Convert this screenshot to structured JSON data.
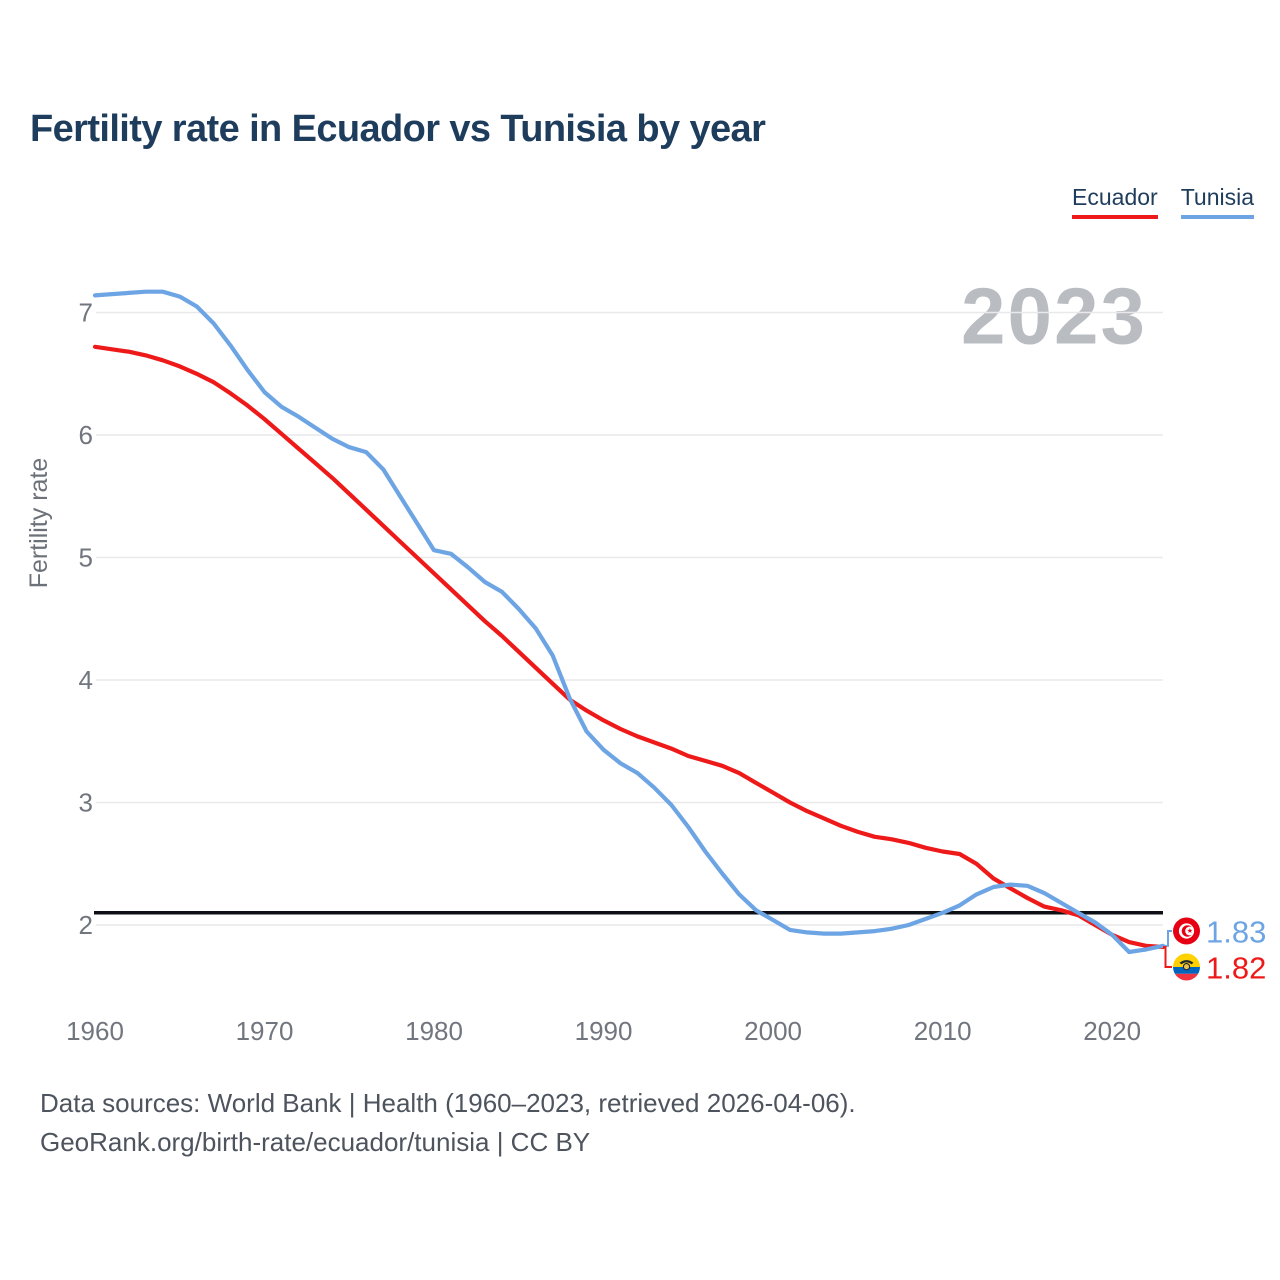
{
  "header": {
    "title": "Fertility rate in Ecuador vs Tunisia by year"
  },
  "legend": {
    "items": [
      {
        "label": "Ecuador",
        "color": "#ee1a1a"
      },
      {
        "label": "Tunisia",
        "color": "#6da5e4"
      }
    ]
  },
  "footer": {
    "line1": "Data sources: World Bank | Health (1960–2023, retrieved 2026-04-06).",
    "line2": "GeoRank.org/birth-rate/ecuador/tunisia | CC BY"
  },
  "chart_data": {
    "type": "line",
    "title": "Fertility rate in Ecuador vs Tunisia by year",
    "xlabel": "",
    "ylabel": "Fertility rate",
    "watermark": "2023",
    "grid": true,
    "legend_position": "top-right",
    "x_ticks": [
      1960,
      1970,
      1980,
      1990,
      2000,
      2010,
      2020
    ],
    "y_ticks": [
      2,
      3,
      4,
      5,
      6,
      7
    ],
    "ylim": [
      1.55,
      7.3
    ],
    "reference_line": {
      "value": 2.1,
      "color": "#0d1015"
    },
    "x": [
      1960,
      1961,
      1962,
      1963,
      1964,
      1965,
      1966,
      1967,
      1968,
      1969,
      1970,
      1971,
      1972,
      1973,
      1974,
      1975,
      1976,
      1977,
      1978,
      1979,
      1980,
      1981,
      1982,
      1983,
      1984,
      1985,
      1986,
      1987,
      1988,
      1989,
      1990,
      1991,
      1992,
      1993,
      1994,
      1995,
      1996,
      1997,
      1998,
      1999,
      2000,
      2001,
      2002,
      2003,
      2004,
      2005,
      2006,
      2007,
      2008,
      2009,
      2010,
      2011,
      2012,
      2013,
      2014,
      2015,
      2016,
      2017,
      2018,
      2019,
      2020,
      2021,
      2022,
      2023
    ],
    "series": [
      {
        "name": "Ecuador",
        "color": "#ee1a1a",
        "values": [
          6.72,
          6.7,
          6.68,
          6.65,
          6.61,
          6.56,
          6.5,
          6.43,
          6.34,
          6.24,
          6.13,
          6.01,
          5.89,
          5.77,
          5.65,
          5.52,
          5.39,
          5.26,
          5.13,
          5.0,
          4.87,
          4.74,
          4.61,
          4.48,
          4.36,
          4.23,
          4.1,
          3.97,
          3.84,
          3.75,
          3.67,
          3.6,
          3.54,
          3.49,
          3.44,
          3.38,
          3.34,
          3.3,
          3.24,
          3.16,
          3.08,
          3.0,
          2.93,
          2.87,
          2.81,
          2.76,
          2.72,
          2.7,
          2.67,
          2.63,
          2.6,
          2.58,
          2.5,
          2.38,
          2.3,
          2.22,
          2.15,
          2.12,
          2.08,
          2.0,
          1.92,
          1.86,
          1.83,
          1.82
        ]
      },
      {
        "name": "Tunisia",
        "color": "#6da5e4",
        "values": [
          7.14,
          7.15,
          7.16,
          7.17,
          7.17,
          7.13,
          7.05,
          6.91,
          6.73,
          6.53,
          6.35,
          6.23,
          6.15,
          6.06,
          5.97,
          5.9,
          5.86,
          5.72,
          5.5,
          5.28,
          5.06,
          5.03,
          4.92,
          4.8,
          4.72,
          4.58,
          4.42,
          4.2,
          3.85,
          3.58,
          3.43,
          3.32,
          3.24,
          3.12,
          2.98,
          2.8,
          2.6,
          2.42,
          2.25,
          2.12,
          2.04,
          1.96,
          1.94,
          1.93,
          1.93,
          1.94,
          1.95,
          1.97,
          2.0,
          2.05,
          2.1,
          2.16,
          2.25,
          2.31,
          2.33,
          2.32,
          2.26,
          2.18,
          2.1,
          2.02,
          1.92,
          1.78,
          1.8,
          1.83
        ]
      }
    ],
    "end_labels": [
      {
        "series": "Tunisia",
        "value": "1.83"
      },
      {
        "series": "Ecuador",
        "value": "1.82"
      }
    ]
  }
}
